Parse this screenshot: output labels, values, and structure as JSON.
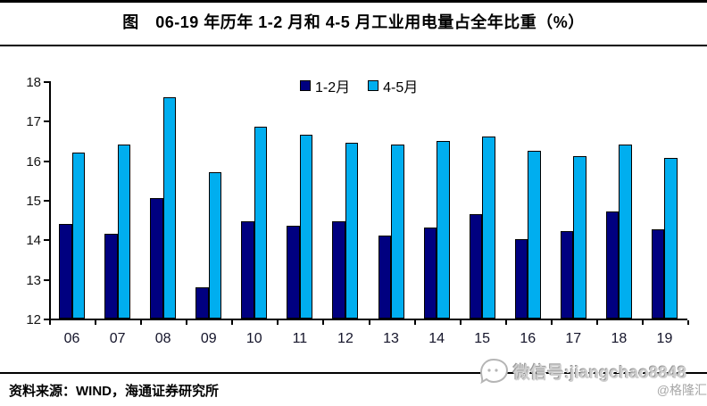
{
  "title": "图　06-19 年历年 1-2 月和 4-5 月工业用电量占全年比重（%）",
  "legend": {
    "items": [
      {
        "label": "1-2月",
        "color": "#000080"
      },
      {
        "label": "4-5月",
        "color": "#00AEEF"
      }
    ]
  },
  "chart_data": {
    "type": "bar",
    "title": "06-19 年历年 1-2 月和 4-5 月工业用电量占全年比重（%）",
    "categories": [
      "06",
      "07",
      "08",
      "09",
      "10",
      "11",
      "12",
      "13",
      "14",
      "15",
      "16",
      "17",
      "18",
      "19"
    ],
    "series": [
      {
        "name": "1-2月",
        "color": "#000080",
        "values": [
          14.4,
          14.15,
          15.05,
          12.8,
          14.45,
          14.35,
          14.45,
          14.1,
          14.3,
          14.65,
          14.0,
          14.2,
          14.7,
          14.25
        ]
      },
      {
        "name": "4-5月",
        "color": "#00AEEF",
        "values": [
          16.2,
          16.4,
          17.6,
          15.7,
          16.85,
          16.65,
          16.45,
          16.4,
          16.5,
          16.6,
          16.25,
          16.1,
          16.4,
          16.05
        ]
      }
    ],
    "xlabel": "",
    "ylabel": "",
    "ylim": [
      12,
      18
    ],
    "yticks": [
      12,
      13,
      14,
      15,
      16,
      17,
      18
    ],
    "grid": false,
    "legend_position": "top-center"
  },
  "footer": {
    "source": "资料来源：WIND，海通证券研究所"
  },
  "watermark": {
    "wechat": "微信号:jiangchao8848",
    "brand": "@格隆汇"
  }
}
